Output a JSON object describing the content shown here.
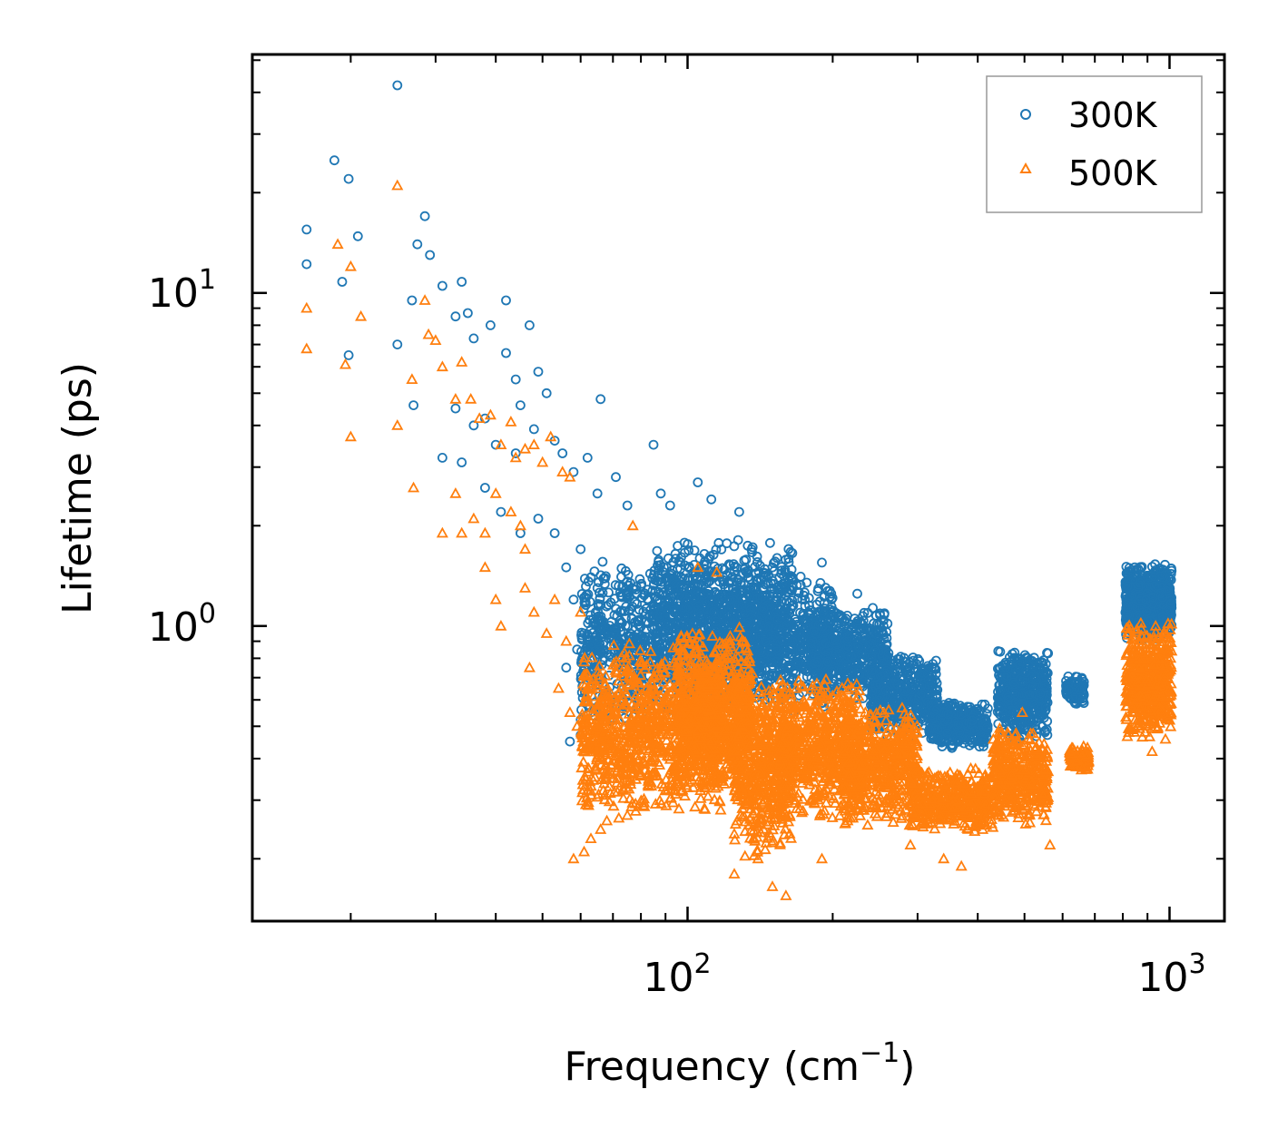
{
  "chart_data": {
    "type": "scatter",
    "xscale": "log",
    "yscale": "log",
    "xlabel": "Frequency (cm",
    "xlabel_sup": "−1",
    "xlabel_close": ")",
    "ylabel": "Lifetime (ps)",
    "xlim": [
      12.5,
      1300
    ],
    "ylim": [
      0.13,
      52
    ],
    "x_tick_labels": [
      {
        "value": 100,
        "base": "10",
        "exp": "2"
      },
      {
        "value": 1000,
        "base": "10",
        "exp": "3"
      }
    ],
    "y_tick_labels": [
      {
        "value": 1,
        "base": "10",
        "exp": "0"
      },
      {
        "value": 10,
        "base": "10",
        "exp": "1"
      }
    ],
    "legend_position": "top-right",
    "series": [
      {
        "name": "300K",
        "marker": "circle",
        "color": "#1f77b4",
        "points": [
          [
            25,
            42
          ],
          [
            18.5,
            25
          ],
          [
            19.8,
            22
          ],
          [
            16.2,
            15.5
          ],
          [
            20.7,
            14.8
          ],
          [
            28.5,
            17
          ],
          [
            27.5,
            14
          ],
          [
            29.2,
            13
          ],
          [
            16.2,
            12.2
          ],
          [
            19.2,
            10.8
          ],
          [
            25,
            7
          ],
          [
            19.8,
            6.5
          ],
          [
            26.8,
            9.5
          ],
          [
            31,
            10.5
          ],
          [
            34,
            10.8
          ],
          [
            33,
            8.5
          ],
          [
            35,
            8.7
          ],
          [
            39,
            8
          ],
          [
            42,
            9.5
          ],
          [
            47,
            8
          ],
          [
            36,
            7.3
          ],
          [
            42,
            6.6
          ],
          [
            44,
            5.5
          ],
          [
            49,
            5.8
          ],
          [
            45,
            4.6
          ],
          [
            51,
            5
          ],
          [
            27,
            4.6
          ],
          [
            33,
            4.5
          ],
          [
            36,
            4
          ],
          [
            38,
            4.2
          ],
          [
            31,
            3.2
          ],
          [
            34,
            3.1
          ],
          [
            38,
            2.6
          ],
          [
            40,
            3.5
          ],
          [
            44,
            3.3
          ],
          [
            48,
            3.9
          ],
          [
            53,
            3.6
          ],
          [
            55,
            3.3
          ],
          [
            58,
            2.9
          ],
          [
            62,
            3.2
          ],
          [
            66,
            4.8
          ],
          [
            71,
            2.8
          ],
          [
            65,
            2.5
          ],
          [
            75,
            2.3
          ],
          [
            85,
            3.5
          ],
          [
            88,
            2.5
          ],
          [
            92,
            2.3
          ],
          [
            105,
            2.7
          ],
          [
            112,
            2.4
          ],
          [
            128,
            2.2
          ],
          [
            41,
            2.2
          ],
          [
            45,
            1.9
          ],
          [
            49,
            2.1
          ],
          [
            53,
            1.9
          ],
          [
            56,
            1.5
          ],
          [
            60,
            1.7
          ],
          [
            63,
            1.4
          ],
          [
            58,
            1.2
          ],
          [
            61,
            0.95
          ],
          [
            65,
            1.3
          ],
          [
            56,
            0.75
          ],
          [
            59,
            0.85
          ],
          [
            57,
            0.45
          ],
          [
            60,
            0.47
          ],
          [
            63,
            0.55
          ],
          [
            68,
            0.62
          ],
          [
            74,
            0.7
          ],
          [
            150,
            1.5
          ],
          [
            165,
            1.4
          ],
          [
            190,
            1.55
          ],
          [
            225,
            1.25
          ],
          [
            255,
            1.0
          ],
          [
            300,
            0.58
          ],
          [
            340,
            0.58
          ],
          [
            390,
            0.52
          ]
        ],
        "bands": [
          {
            "x_start": 60,
            "x_end": 130,
            "y_low": 0.5,
            "y_high": 1.6,
            "n": 950
          },
          {
            "x_start": 85,
            "x_end": 165,
            "y_low": 0.65,
            "y_high": 1.9,
            "n": 650
          },
          {
            "x_start": 130,
            "x_end": 200,
            "y_low": 0.55,
            "y_high": 1.45,
            "n": 600
          },
          {
            "x_start": 180,
            "x_end": 260,
            "y_low": 0.6,
            "y_high": 1.15,
            "n": 500
          },
          {
            "x_start": 240,
            "x_end": 330,
            "y_low": 0.45,
            "y_high": 0.85,
            "n": 450
          },
          {
            "x_start": 320,
            "x_end": 420,
            "y_low": 0.42,
            "y_high": 0.6,
            "n": 350
          },
          {
            "x_start": 440,
            "x_end": 560,
            "y_low": 0.45,
            "y_high": 0.88,
            "n": 450
          },
          {
            "x_start": 610,
            "x_end": 665,
            "y_low": 0.58,
            "y_high": 0.72,
            "n": 120
          },
          {
            "x_start": 810,
            "x_end": 1010,
            "y_low": 0.9,
            "y_high": 1.55,
            "n": 600
          }
        ]
      },
      {
        "name": "500K",
        "marker": "triangle",
        "color": "#ff7f0e",
        "points": [
          [
            25,
            21
          ],
          [
            18.8,
            14
          ],
          [
            20,
            12
          ],
          [
            16.2,
            9
          ],
          [
            21,
            8.5
          ],
          [
            16.2,
            6.8
          ],
          [
            19.5,
            6.1
          ],
          [
            20,
            3.7
          ],
          [
            25,
            4
          ],
          [
            26.8,
            5.5
          ],
          [
            29,
            7.5
          ],
          [
            28.5,
            9.5
          ],
          [
            30,
            7.2
          ],
          [
            31,
            6
          ],
          [
            33,
            4.8
          ],
          [
            34,
            6.2
          ],
          [
            35.5,
            4.8
          ],
          [
            37,
            4.2
          ],
          [
            39,
            4.3
          ],
          [
            41,
            3.5
          ],
          [
            43,
            4.1
          ],
          [
            44,
            3.2
          ],
          [
            46,
            3.4
          ],
          [
            48,
            3.5
          ],
          [
            50,
            3.1
          ],
          [
            52,
            3.7
          ],
          [
            55,
            2.9
          ],
          [
            57,
            2.8
          ],
          [
            27,
            2.6
          ],
          [
            31,
            1.9
          ],
          [
            33,
            2.5
          ],
          [
            34,
            1.9
          ],
          [
            36,
            2.1
          ],
          [
            38,
            1.9
          ],
          [
            40,
            2.5
          ],
          [
            43,
            2.2
          ],
          [
            45,
            2.0
          ],
          [
            46,
            1.7
          ],
          [
            38,
            1.5
          ],
          [
            40,
            1.2
          ],
          [
            41,
            1.0
          ],
          [
            46,
            1.3
          ],
          [
            48,
            1.1
          ],
          [
            51,
            0.95
          ],
          [
            53,
            1.2
          ],
          [
            47,
            0.75
          ],
          [
            56,
            0.9
          ],
          [
            60,
            1.1
          ],
          [
            61,
            0.78
          ],
          [
            54,
            0.65
          ],
          [
            57,
            0.55
          ],
          [
            59,
            0.5
          ],
          [
            62,
            0.6
          ],
          [
            77,
            2.0
          ],
          [
            105,
            1.5
          ],
          [
            115,
            1.45
          ],
          [
            58,
            0.2
          ],
          [
            61,
            0.21
          ],
          [
            63,
            0.23
          ],
          [
            66,
            0.245
          ],
          [
            68,
            0.26
          ],
          [
            72,
            0.265
          ],
          [
            75,
            0.27
          ],
          [
            160,
            0.155
          ],
          [
            150,
            0.165
          ],
          [
            125,
            0.18
          ],
          [
            140,
            0.2
          ],
          [
            190,
            0.2
          ],
          [
            230,
            0.28
          ],
          [
            290,
            0.22
          ],
          [
            340,
            0.2
          ],
          [
            370,
            0.19
          ],
          [
            495,
            0.55
          ],
          [
            565,
            0.22
          ],
          [
            920,
            0.42
          ],
          [
            855,
            0.6
          ]
        ],
        "bands": [
          {
            "x_start": 60,
            "x_end": 120,
            "y_low": 0.26,
            "y_high": 0.9,
            "n": 1000
          },
          {
            "x_start": 95,
            "x_end": 135,
            "y_low": 0.32,
            "y_high": 1.0,
            "n": 700
          },
          {
            "x_start": 125,
            "x_end": 165,
            "y_low": 0.2,
            "y_high": 0.75,
            "n": 550
          },
          {
            "x_start": 155,
            "x_end": 230,
            "y_low": 0.26,
            "y_high": 0.72,
            "n": 650
          },
          {
            "x_start": 210,
            "x_end": 300,
            "y_low": 0.25,
            "y_high": 0.58,
            "n": 550
          },
          {
            "x_start": 290,
            "x_end": 430,
            "y_low": 0.24,
            "y_high": 0.38,
            "n": 450
          },
          {
            "x_start": 430,
            "x_end": 560,
            "y_low": 0.25,
            "y_high": 0.5,
            "n": 400
          },
          {
            "x_start": 620,
            "x_end": 680,
            "y_low": 0.36,
            "y_high": 0.44,
            "n": 90
          },
          {
            "x_start": 810,
            "x_end": 1010,
            "y_low": 0.45,
            "y_high": 1.05,
            "n": 500
          }
        ]
      }
    ]
  }
}
